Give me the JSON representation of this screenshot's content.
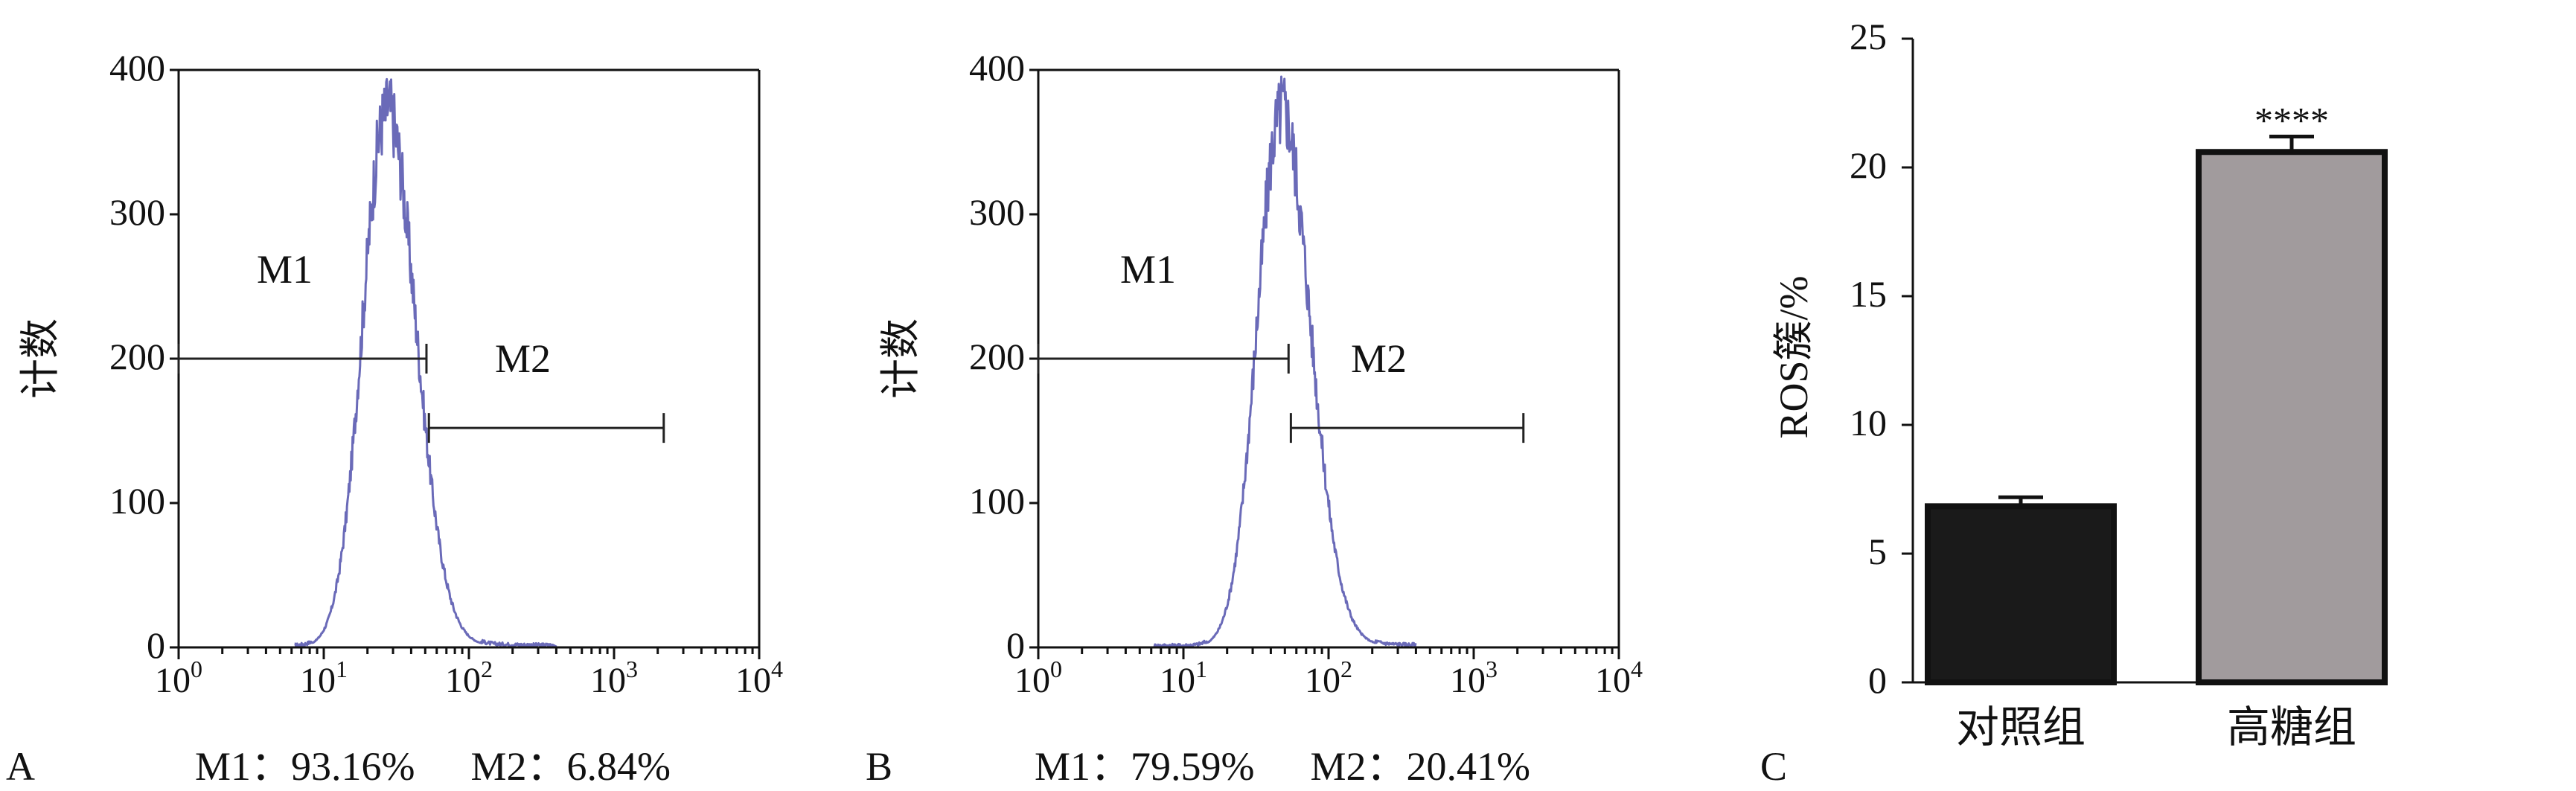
{
  "panels": [
    {
      "letter": "A",
      "ylabel": "计数",
      "gate_labels": [
        "M1",
        "M2"
      ],
      "caption": [
        {
          "name": "M1：",
          "value": "93.16%"
        },
        {
          "name": "M2：",
          "value": "6.84%"
        }
      ]
    },
    {
      "letter": "B",
      "ylabel": "计数",
      "gate_labels": [
        "M1",
        "M2"
      ],
      "caption": [
        {
          "name": "M1：",
          "value": "79.59%"
        },
        {
          "name": "M2：",
          "value": "20.41%"
        }
      ]
    },
    {
      "letter": "C"
    }
  ],
  "chart_data": [
    {
      "type": "area",
      "panel": "A",
      "x_scale": "log",
      "xlim": [
        1,
        10000
      ],
      "ylim": [
        0,
        400
      ],
      "x_ticks": [
        {
          "base": "10",
          "exp": "0"
        },
        {
          "base": "10",
          "exp": "1"
        },
        {
          "base": "10",
          "exp": "2"
        },
        {
          "base": "10",
          "exp": "3"
        },
        {
          "base": "10",
          "exp": "4"
        }
      ],
      "y_ticks": [
        "0",
        "100",
        "200",
        "300",
        "400"
      ],
      "ylabel": "计数",
      "peak": {
        "x": 27,
        "y": 370
      },
      "curve_color": "#6a6ab8",
      "gates": [
        {
          "name": "M1",
          "x_start": 1,
          "x_end": 51,
          "y": 200
        },
        {
          "name": "M2",
          "x_start": 53,
          "x_end": 2200,
          "y": 152
        }
      ],
      "stats": {
        "M1": "93.16%",
        "M2": "6.84%"
      }
    },
    {
      "type": "area",
      "panel": "B",
      "x_scale": "log",
      "xlim": [
        1,
        10000
      ],
      "ylim": [
        0,
        400
      ],
      "x_ticks": [
        {
          "base": "10",
          "exp": "0"
        },
        {
          "base": "10",
          "exp": "1"
        },
        {
          "base": "10",
          "exp": "2"
        },
        {
          "base": "10",
          "exp": "3"
        },
        {
          "base": "10",
          "exp": "4"
        }
      ],
      "y_ticks": [
        "0",
        "100",
        "200",
        "300",
        "400"
      ],
      "ylabel": "计数",
      "peak": {
        "x": 47,
        "y": 370
      },
      "curve_color": "#6a6ab8",
      "gates": [
        {
          "name": "M1",
          "x_start": 1,
          "x_end": 53,
          "y": 200
        },
        {
          "name": "M2",
          "x_start": 55,
          "x_end": 2200,
          "y": 152
        }
      ],
      "stats": {
        "M1": "79.59%",
        "M2": "20.41%"
      }
    },
    {
      "type": "bar",
      "panel": "C",
      "categories": [
        "对照组",
        "高糖组"
      ],
      "values": [
        6.84,
        20.6
      ],
      "errors": [
        0.35,
        0.6
      ],
      "colors": [
        "#1a1a1a",
        "#a19b9d"
      ],
      "ylim": [
        0,
        25
      ],
      "y_ticks": [
        "0",
        "5",
        "10",
        "15",
        "20",
        "25"
      ],
      "ylabel": "ROS簇/%",
      "significance": [
        {
          "category": "高糖组",
          "label": "****"
        }
      ]
    }
  ]
}
